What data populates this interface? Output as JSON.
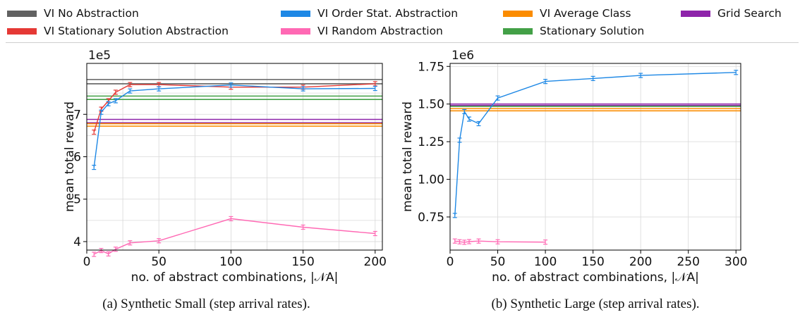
{
  "legend": [
    {
      "label": "VI No Abstraction",
      "color": "#616161"
    },
    {
      "label": "VI Stationary Solution Abstraction",
      "color": "#e53935"
    },
    {
      "label": "VI Order Stat. Abstraction",
      "color": "#1e88e5"
    },
    {
      "label": "VI Random Abstraction",
      "color": "#ff69b4"
    },
    {
      "label": "VI Average Class",
      "color": "#fb8c00"
    },
    {
      "label": "Stationary Solution",
      "color": "#43a047"
    },
    {
      "label": "Grid Search",
      "color": "#8e24aa"
    }
  ],
  "chart_data": [
    {
      "type": "line",
      "caption": "(a) Synthetic Small (step arrival rates).",
      "xlabel": "no. of abstract combinations, |𝒩A|",
      "ylabel": "mean total reward",
      "offset_text": "1e5",
      "xlim": [
        0,
        205
      ],
      "ylim": [
        3.8,
        8.2
      ],
      "xticks": [
        0,
        50,
        100,
        150,
        200
      ],
      "xtick_labels": [
        "0",
        "50",
        "100",
        "150",
        "200"
      ],
      "yticks": [
        4,
        5,
        6,
        7
      ],
      "ytick_labels": [
        "4",
        "5",
        "6",
        "7"
      ],
      "grid": true,
      "hlines": [
        {
          "name": "VI No Abstraction",
          "color": "#616161",
          "values": [
            7.72,
            7.82
          ]
        },
        {
          "name": "Stationary Solution",
          "color": "#43a047",
          "values": [
            7.35,
            7.43
          ]
        },
        {
          "name": "Grid Search",
          "color": "#8e24aa",
          "values": [
            6.8,
            6.88
          ]
        },
        {
          "name": "VI Average Class",
          "color": "#fb8c00",
          "values": [
            6.72,
            6.78
          ]
        }
      ],
      "series": [
        {
          "name": "VI Stationary Solution Abstraction",
          "color": "#e53935",
          "x": [
            5,
            10,
            15,
            20,
            30,
            50,
            100,
            150,
            200
          ],
          "y": [
            6.58,
            7.12,
            7.32,
            7.52,
            7.7,
            7.7,
            7.64,
            7.64,
            7.72
          ]
        },
        {
          "name": "VI Order Stat. Abstraction",
          "color": "#1e88e5",
          "x": [
            5,
            10,
            15,
            20,
            30,
            50,
            100,
            150,
            200
          ],
          "y": [
            5.75,
            7.05,
            7.25,
            7.32,
            7.55,
            7.6,
            7.69,
            7.6,
            7.61
          ]
        },
        {
          "name": "VI Random Abstraction",
          "color": "#ff69b4",
          "x": [
            5,
            10,
            15,
            20,
            30,
            50,
            100,
            150,
            200
          ],
          "y": [
            3.7,
            3.79,
            3.71,
            3.82,
            3.97,
            4.02,
            4.54,
            4.34,
            4.19
          ]
        }
      ]
    },
    {
      "type": "line",
      "caption": "(b) Synthetic Large (step arrival rates).",
      "xlabel": "no. of abstract combinations, |𝒩A|",
      "ylabel": "mean total reward",
      "offset_text": "1e6",
      "xlim": [
        0,
        305
      ],
      "ylim": [
        0.53,
        1.77
      ],
      "xticks": [
        0,
        50,
        100,
        150,
        200,
        250,
        300
      ],
      "xtick_labels": [
        "0",
        "50",
        "100",
        "150",
        "200",
        "250",
        "300"
      ],
      "yticks": [
        0.75,
        1.0,
        1.25,
        1.5,
        1.75
      ],
      "ytick_labels": [
        "0.75",
        "1.00",
        "1.25",
        "1.50",
        "1.75"
      ],
      "grid": true,
      "hlines": [
        {
          "name": "Grid Search",
          "color": "#8e24aa",
          "values": [
            1.5,
            1.49
          ]
        },
        {
          "name": "Stationary Solution",
          "color": "#43a047",
          "values": [
            1.485
          ]
        },
        {
          "name": "VI Average Class",
          "color": "#fb8c00",
          "values": [
            1.47,
            1.455
          ]
        }
      ],
      "series": [
        {
          "name": "VI Order Stat. Abstraction",
          "color": "#1e88e5",
          "x": [
            5,
            10,
            15,
            20,
            30,
            50,
            100,
            150,
            200,
            300
          ],
          "y": [
            0.76,
            1.26,
            1.45,
            1.4,
            1.37,
            1.54,
            1.65,
            1.67,
            1.69,
            1.71
          ]
        },
        {
          "name": "VI Random Abstraction",
          "color": "#ff69b4",
          "x": [
            5,
            10,
            15,
            20,
            30,
            50,
            100
          ],
          "y": [
            0.59,
            0.585,
            0.582,
            0.586,
            0.59,
            0.585,
            0.583
          ]
        }
      ]
    }
  ]
}
